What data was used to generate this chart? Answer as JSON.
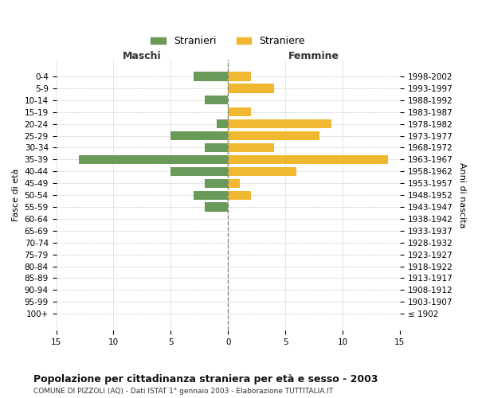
{
  "age_groups": [
    "100+",
    "95-99",
    "90-94",
    "85-89",
    "80-84",
    "75-79",
    "70-74",
    "65-69",
    "60-64",
    "55-59",
    "50-54",
    "45-49",
    "40-44",
    "35-39",
    "30-34",
    "25-29",
    "20-24",
    "15-19",
    "10-14",
    "5-9",
    "0-4"
  ],
  "birth_years": [
    "≤ 1902",
    "1903-1907",
    "1908-1912",
    "1913-1917",
    "1918-1922",
    "1923-1927",
    "1928-1932",
    "1933-1937",
    "1938-1942",
    "1943-1947",
    "1948-1952",
    "1953-1957",
    "1958-1962",
    "1963-1967",
    "1968-1972",
    "1973-1977",
    "1978-1982",
    "1983-1987",
    "1988-1992",
    "1993-1997",
    "1998-2002"
  ],
  "maschi": [
    0,
    0,
    0,
    0,
    0,
    0,
    0,
    0,
    0,
    2,
    3,
    2,
    5,
    13,
    2,
    5,
    1,
    0,
    2,
    0,
    3
  ],
  "femmine": [
    0,
    0,
    0,
    0,
    0,
    0,
    0,
    0,
    0,
    0,
    2,
    1,
    6,
    14,
    4,
    8,
    9,
    2,
    0,
    4,
    2
  ],
  "male_color": "#6a9a5a",
  "female_color": "#f0b830",
  "title": "Popolazione per cittadinanza straniera per età e sesso - 2003",
  "subtitle": "COMUNE DI PIZZOLI (AQ) - Dati ISTAT 1° gennaio 2003 - Elaborazione TUTTITALIA.IT",
  "legend_male": "Stranieri",
  "legend_female": "Straniere",
  "xlabel_left": "Maschi",
  "xlabel_right": "Femmine",
  "ylabel_left": "Fasce di età",
  "ylabel_right": "Anni di nascita",
  "xlim": 15,
  "bar_height": 0.75,
  "background_color": "#ffffff",
  "grid_color": "#cccccc",
  "centerline_color": "#888888"
}
